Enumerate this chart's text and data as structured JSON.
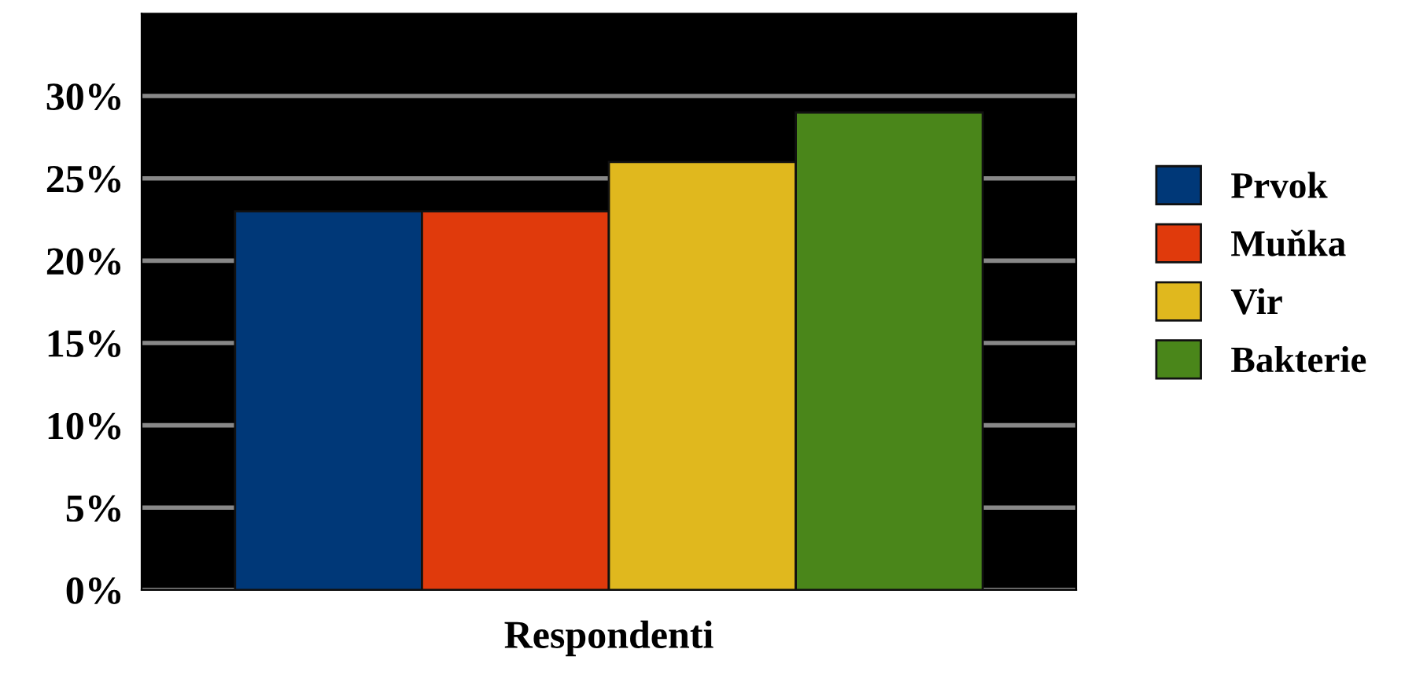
{
  "chart_data": {
    "type": "bar",
    "categories": [
      "Respondenti"
    ],
    "series": [
      {
        "name": "Prvok",
        "color": "#003878",
        "values": [
          23
        ]
      },
      {
        "name": "Muňka",
        "color": "#e03a0c",
        "values": [
          23
        ]
      },
      {
        "name": "Vir",
        "color": "#e0b81e",
        "values": [
          26
        ]
      },
      {
        "name": "Bakterie",
        "color": "#4a861a",
        "values": [
          29
        ]
      }
    ],
    "ylim": [
      0,
      35
    ],
    "yticks": [
      {
        "value": 0,
        "label": "0%"
      },
      {
        "value": 5,
        "label": "5%"
      },
      {
        "value": 10,
        "label": "10%"
      },
      {
        "value": 15,
        "label": "15%"
      },
      {
        "value": 20,
        "label": "20%"
      },
      {
        "value": 25,
        "label": "25%"
      },
      {
        "value": 30,
        "label": "30%"
      }
    ],
    "grid": "y",
    "legend": "right"
  }
}
